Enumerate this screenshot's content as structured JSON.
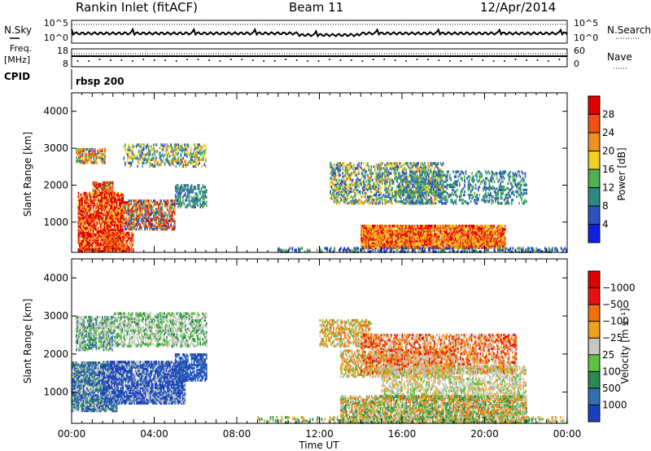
{
  "header": {
    "station": "Rankin Inlet (fitACF)",
    "beam": "Beam 11",
    "date": "12/Apr/2014"
  },
  "strips": {
    "noise_left_label": "N.Sky",
    "noise_right_label": "N.Search",
    "noise_ticks_left": [
      "10^5",
      "10^0"
    ],
    "noise_ticks_right": [
      "10^5",
      "10^0"
    ],
    "freq_left_label_1": "Freq.",
    "freq_left_label_2": "[MHz]",
    "freq_right_label": "Nave",
    "freq_ticks_left": [
      "18",
      "8"
    ],
    "freq_ticks_right": [
      "60",
      "0"
    ],
    "cpid_label": "CPID",
    "cpid_value": "rbsp 200"
  },
  "chart_data": [
    {
      "type": "heatmap",
      "name": "power",
      "ylabel": "Slant Range [km]",
      "ylim": [
        180,
        4500
      ],
      "yticks": [
        1000,
        2000,
        3000,
        4000
      ],
      "x_ticks": [
        "00:00",
        "04:00",
        "08:00",
        "12:00",
        "16:00",
        "20:00",
        "00:00"
      ],
      "colorbar_label": "Power [dB]",
      "colorbar_ticks": [
        "4",
        "8",
        "12",
        "16",
        "20",
        "24",
        "28"
      ],
      "colorbar_colors": [
        "#1020e0",
        "#3050c0",
        "#2a8a80",
        "#50b050",
        "#f0d020",
        "#f09020",
        "#f05010",
        "#e00000"
      ]
    },
    {
      "type": "heatmap",
      "name": "velocity",
      "ylabel": "Slant Range [km]",
      "ylim": [
        180,
        4500
      ],
      "yticks": [
        1000,
        2000,
        3000,
        4000
      ],
      "xlabel": "Time UT",
      "x_ticks": [
        "00:00",
        "04:00",
        "08:00",
        "12:00",
        "16:00",
        "20:00",
        "00:00"
      ],
      "colorbar_label": "Velocity [m s⁻¹]",
      "colorbar_ticks": [
        "1000",
        "500",
        "100",
        "25",
        "−25",
        "−100",
        "−500",
        "−1000"
      ],
      "colorbar_colors": [
        "#1a40c0",
        "#3070b0",
        "#2a8a50",
        "#60c040",
        "#c8c8c0",
        "#f0a020",
        "#f07010",
        "#e81010",
        "#e00000"
      ]
    }
  ]
}
